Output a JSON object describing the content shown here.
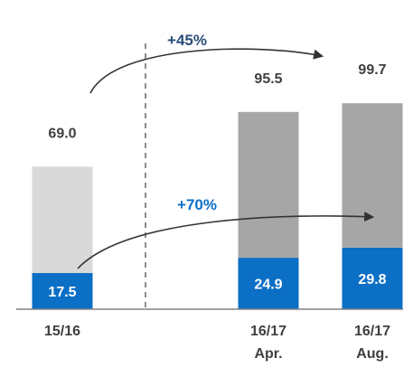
{
  "chart_data": {
    "type": "bar",
    "stacked": true,
    "categories": [
      [
        "15/16",
        ""
      ],
      [
        "16/17",
        "Apr."
      ],
      [
        "16/17",
        "Aug."
      ]
    ],
    "series": [
      {
        "values": [
          17.5,
          24.9,
          29.8
        ],
        "labels": [
          "17.5",
          "24.9",
          "29.8"
        ],
        "color": "#0b6fc6"
      },
      {
        "values": [
          51.5,
          70.6,
          69.9
        ],
        "colors": [
          "#d9d9d9",
          "#a6a6a6",
          "#a6a6a6"
        ]
      }
    ],
    "totals": [
      69.0,
      95.5,
      99.7
    ],
    "total_labels": [
      "69.0",
      "95.5",
      "99.7"
    ],
    "annotations": [
      {
        "text": "+45%",
        "color": "#2a4d7a"
      },
      {
        "text": "+70%",
        "color": "#0b6fc6"
      }
    ],
    "divider": "dashed, between 15/16 and 16/17 Apr.",
    "ylim": [
      0,
      120
    ],
    "grid": false,
    "legend": "none"
  }
}
